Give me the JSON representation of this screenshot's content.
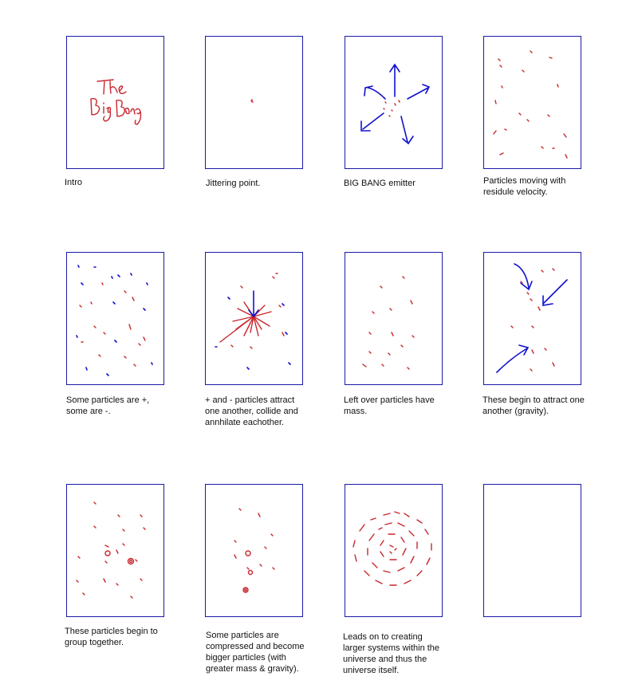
{
  "colors": {
    "frame_border": "#1a1aa8",
    "red_stroke": "#c8262d",
    "blue_stroke": "#1111cc"
  },
  "frames": [
    {
      "id": "intro",
      "handwriting": "The Big Bang",
      "caption": "Intro"
    },
    {
      "id": "jitter",
      "caption": "Jittering point."
    },
    {
      "id": "emitter",
      "caption": "BIG BANG emitter"
    },
    {
      "id": "residue",
      "caption": "Particles moving with residule velocity."
    },
    {
      "id": "charge",
      "caption": "Some particles are +, some are -."
    },
    {
      "id": "annihilate",
      "caption": "+ and - particles attract one another, collide and annhilate eachother."
    },
    {
      "id": "mass",
      "caption": "Left over particles have mass."
    },
    {
      "id": "gravity",
      "caption": "These begin to attract one another (gravity)."
    },
    {
      "id": "group",
      "caption": "These particles begin to group together."
    },
    {
      "id": "compress",
      "caption": "Some particles are compressed and become bigger particles (with greater mass & gravity)."
    },
    {
      "id": "systems",
      "caption": "Leads on to creating larger systems within the universe and thus the universe itself."
    },
    {
      "id": "blank",
      "caption": ""
    }
  ]
}
